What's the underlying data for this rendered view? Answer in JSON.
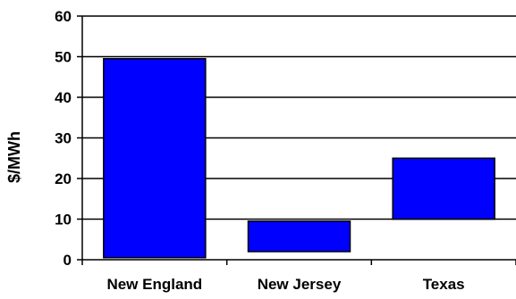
{
  "chart_data": {
    "type": "bar",
    "title": "",
    "xlabel": "",
    "ylabel": "$/MWh",
    "ylim": [
      0,
      60
    ],
    "y_ticks": [
      0,
      10,
      20,
      30,
      40,
      50,
      60
    ],
    "grid": true,
    "categories": [
      "New England",
      "New Jersey",
      "Texas"
    ],
    "series": [
      {
        "name": "",
        "values": [
          {
            "low": 0.5,
            "high": 49.5
          },
          {
            "low": 2,
            "high": 9.5
          },
          {
            "low": 10,
            "high": 25
          }
        ]
      }
    ],
    "colors": {
      "bar_fill": "#0000ff",
      "bar_stroke": "#000000",
      "grid": "#000000",
      "axis": "#000000"
    }
  }
}
